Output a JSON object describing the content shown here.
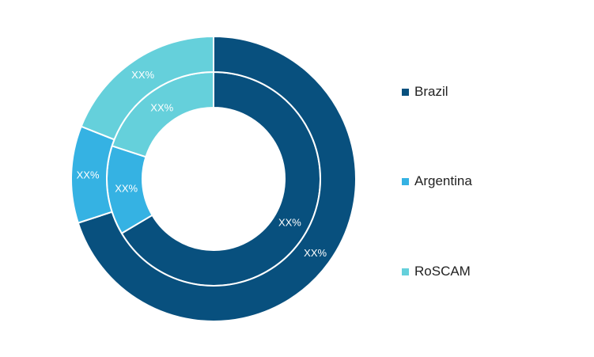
{
  "chart_data": {
    "type": "pie",
    "categories": [
      "Brazil",
      "Argentina",
      "RoSCAM"
    ],
    "colors": [
      "#08507e",
      "#35b2e3",
      "#65d0db"
    ],
    "series": [
      {
        "values": [
          0.665,
          0.135,
          0.2
        ],
        "labels": [
          "XX%",
          "XX%",
          "XX%"
        ]
      },
      {
        "values": [
          0.7,
          0.11,
          0.19
        ],
        "labels": [
          "XX%",
          "XX%",
          "XX%"
        ]
      }
    ],
    "legend": {
      "position": "right",
      "items": [
        {
          "label": "Brazil",
          "color": "#08507e"
        },
        {
          "label": "Argentina",
          "color": "#35b2e3"
        },
        {
          "label": "RoSCAM",
          "color": "#65d0db"
        }
      ]
    }
  }
}
